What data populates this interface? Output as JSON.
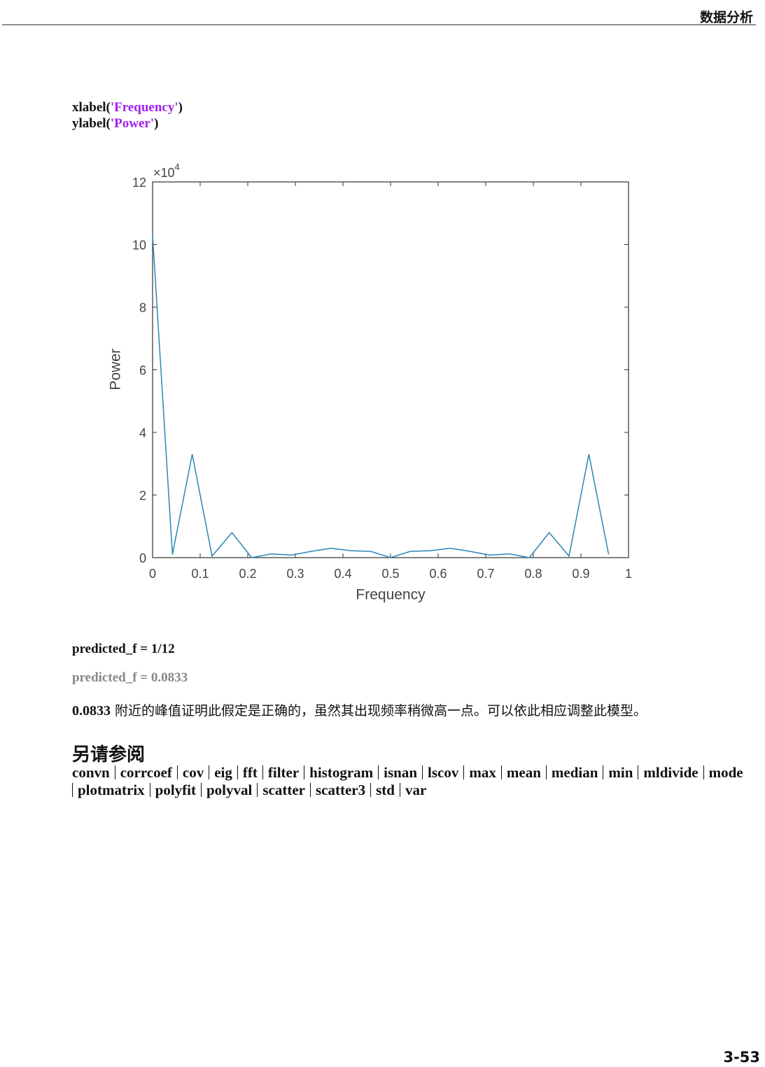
{
  "header": {
    "title": "数据分析"
  },
  "code": [
    {
      "func": "xlabel(",
      "arg": "'Frequency'",
      "close": ")"
    },
    {
      "func": "ylabel(",
      "arg": "'Power'",
      "close": ")"
    }
  ],
  "chart_data": {
    "type": "line",
    "xlabel": "Frequency",
    "ylabel": "Power",
    "y_multiplier": {
      "base": "×10",
      "exponent": "4"
    },
    "x": [
      0,
      0.0417,
      0.0833,
      0.125,
      0.1667,
      0.2083,
      0.25,
      0.2917,
      0.3333,
      0.375,
      0.4167,
      0.4583,
      0.5,
      0.5417,
      0.5833,
      0.625,
      0.6667,
      0.7083,
      0.75,
      0.7917,
      0.8333,
      0.875,
      0.9167,
      0.9583
    ],
    "series": [
      {
        "name": "Power",
        "color": "#2b86b8",
        "values": [
          10.3,
          0.1,
          3.3,
          0.05,
          0.8,
          0.0,
          0.12,
          0.08,
          0.2,
          0.3,
          0.22,
          0.2,
          0.0,
          0.2,
          0.22,
          0.3,
          0.2,
          0.08,
          0.12,
          0.0,
          0.8,
          0.05,
          3.3,
          0.1
        ]
      }
    ],
    "xlim": [
      0,
      1
    ],
    "ylim": [
      0,
      12
    ],
    "xticks": [
      0,
      0.1,
      0.2,
      0.3,
      0.4,
      0.5,
      0.6,
      0.7,
      0.8,
      0.9,
      1
    ],
    "yticks": [
      0,
      2,
      4,
      6,
      8,
      10,
      12
    ],
    "grid": false
  },
  "output": [
    {
      "text": "predicted_f = 1/12",
      "muted": false
    },
    {
      "text": "predicted_f = 0.0833",
      "muted": true
    }
  ],
  "paragraph": {
    "number": "0.0833",
    "text": " 附近的峰值证明此假定是正确的，虽然其出现频率稍微高一点。可以依此相应调整此模型。"
  },
  "see_also": {
    "heading": "另请参阅",
    "items": [
      "convn",
      "corrcoef",
      "cov",
      "eig",
      "fft",
      "filter",
      "histogram",
      "isnan",
      "lscov",
      "max",
      "mean",
      "median",
      "min",
      "mldivide",
      "mode",
      "plotmatrix",
      "polyfit",
      "polyval",
      "scatter",
      "scatter3",
      "std",
      "var"
    ]
  },
  "footer": {
    "page": "3-53"
  }
}
